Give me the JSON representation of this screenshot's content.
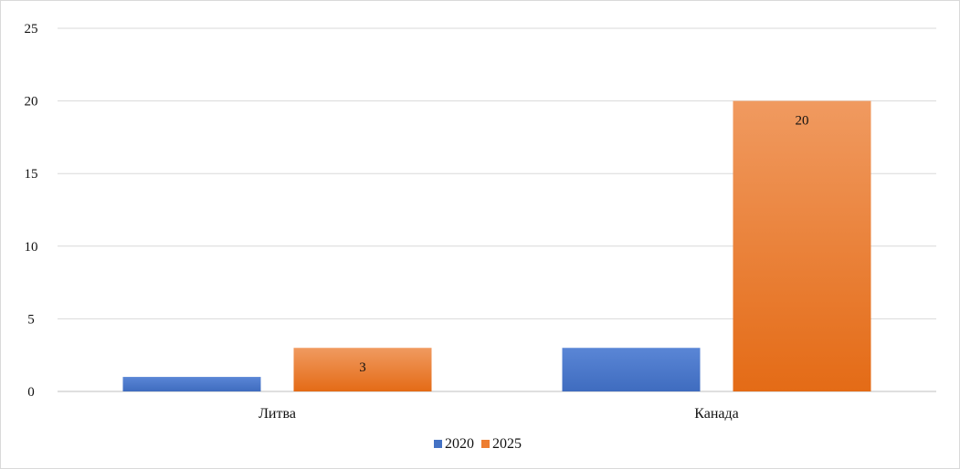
{
  "chart_data": {
    "type": "bar",
    "categories": [
      "Литва",
      "Канада"
    ],
    "series": [
      {
        "name": "2020",
        "values": [
          1,
          3
        ],
        "color": "#4472c4",
        "color_light": "#5a86d6",
        "data_labels": [
          null,
          null
        ]
      },
      {
        "name": "2025",
        "values": [
          3,
          20
        ],
        "color": "#ed7d31",
        "color_light": "#f09a60",
        "color_dark": "#e06a17",
        "data_labels": [
          "3",
          "20"
        ]
      }
    ],
    "ylim": [
      0,
      25
    ],
    "yticks": [
      "0",
      "5",
      "10",
      "15",
      "20",
      "25"
    ],
    "grid": true,
    "legend": "bottom-center",
    "title": "",
    "xlabel": "",
    "ylabel": ""
  }
}
